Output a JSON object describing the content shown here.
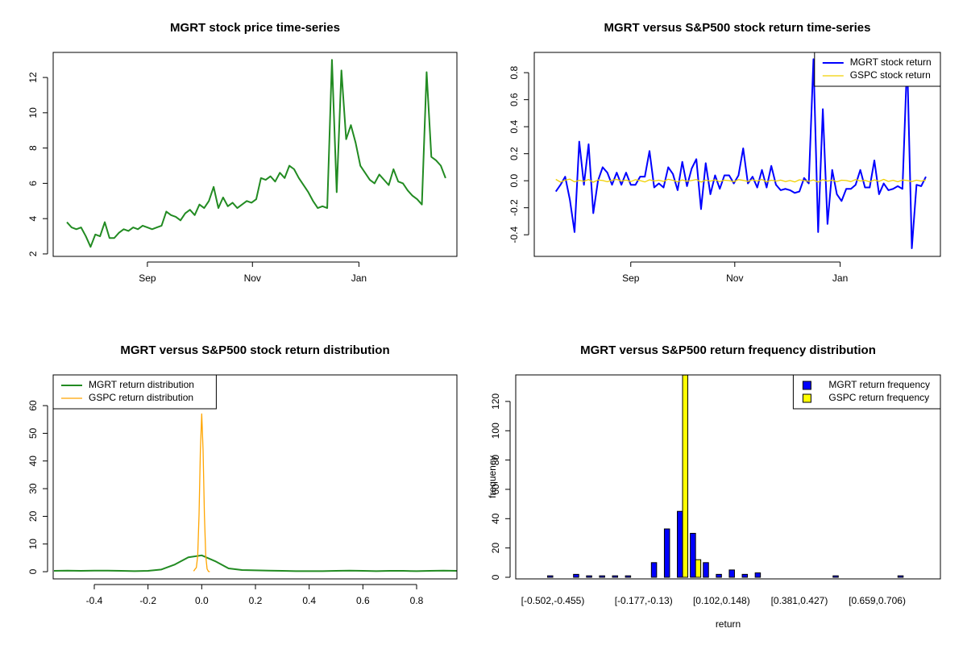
{
  "chart_data": [
    {
      "type": "line",
      "title": "MGRT stock price time-series",
      "series": [
        {
          "color": "#228b22",
          "values": [
            3.8,
            3.5,
            3.4,
            3.5,
            3.0,
            2.4,
            3.1,
            3.0,
            3.8,
            2.9,
            2.9,
            3.2,
            3.4,
            3.3,
            3.5,
            3.4,
            3.6,
            3.5,
            3.4,
            3.5,
            3.6,
            4.4,
            4.2,
            4.1,
            3.9,
            4.3,
            4.5,
            4.2,
            4.8,
            4.6,
            5.0,
            5.8,
            4.6,
            5.2,
            4.7,
            4.9,
            4.6,
            4.8,
            5.0,
            4.9,
            5.1,
            6.3,
            6.2,
            6.4,
            6.1,
            6.6,
            6.3,
            7.0,
            6.8,
            6.3,
            5.9,
            5.5,
            5.0,
            4.6,
            4.7,
            4.6,
            13.0,
            5.5,
            12.4,
            8.5,
            9.3,
            8.3,
            7.0,
            6.6,
            6.2,
            6.0,
            6.5,
            6.2,
            5.9,
            6.8,
            6.1,
            6.0,
            5.6,
            5.3,
            5.1,
            4.8,
            12.3,
            7.5,
            7.3,
            7.0,
            6.3
          ]
        }
      ],
      "xlim": [
        -2.9,
        82.4
      ],
      "xticks": [
        {
          "value": 17,
          "label": "Sep"
        },
        {
          "value": 39.2,
          "label": "Nov"
        },
        {
          "value": 61.7,
          "label": "Jan"
        }
      ],
      "ylim": [
        1.86,
        13.42
      ],
      "yticks": [
        2,
        4,
        6,
        8,
        10,
        12
      ]
    },
    {
      "type": "line",
      "title": "MGRT versus S&P500 stock return time-series",
      "legend": "topright",
      "series": [
        {
          "name": "MGRT stock return",
          "color": "#0000ff",
          "values": [
            null,
            -0.08,
            -0.03,
            0.03,
            -0.14,
            -0.38,
            0.29,
            -0.03,
            0.27,
            -0.24,
            0,
            0.1,
            0.06,
            -0.03,
            0.06,
            -0.03,
            0.06,
            -0.03,
            -0.03,
            0.03,
            0.03,
            0.22,
            -0.05,
            -0.02,
            -0.05,
            0.1,
            0.05,
            -0.07,
            0.14,
            -0.04,
            0.09,
            0.16,
            -0.21,
            0.13,
            -0.1,
            0.04,
            -0.06,
            0.04,
            0.04,
            -0.02,
            0.04,
            0.24,
            -0.02,
            0.03,
            -0.05,
            0.08,
            -0.05,
            0.11,
            -0.03,
            -0.07,
            -0.06,
            -0.07,
            -0.09,
            -0.08,
            0.02,
            -0.02,
            0.9,
            -0.38,
            0.53,
            -0.32,
            0.08,
            -0.1,
            -0.15,
            -0.06,
            -0.06,
            -0.03,
            0.08,
            -0.05,
            -0.05,
            0.15,
            -0.1,
            -0.02,
            -0.07,
            -0.06,
            -0.04,
            -0.06,
            0.9,
            -0.5,
            -0.03,
            -0.04,
            0.03
          ]
        },
        {
          "name": "GSPC stock return",
          "color": "#f0d000",
          "values": [
            null,
            0.01,
            -0.01,
            0.005,
            0.012,
            -0.008,
            0.003,
            -0.004,
            0.009,
            -0.011,
            0.006,
            0.002,
            -0.007,
            0.004,
            0.01,
            -0.003,
            0.005,
            -0.006,
            0.008,
            0.001,
            -0.009,
            0.007,
            -0.002,
            0.004,
            -0.005,
            0.011,
            0.003,
            -0.008,
            0.006,
            -0.004,
            0.002,
            0.009,
            -0.01,
            0.005,
            -0.003,
            0.007,
            -0.006,
            0.004,
            0.001,
            -0.007,
            0.008,
            0.003,
            -0.005,
            0.006,
            -0.002,
            0.009,
            -0.008,
            0.004,
            -0.003,
            0.005,
            -0.006,
            0.002,
            -0.009,
            0.007,
            0.001,
            -0.004,
            0.006,
            -0.01,
            0.008,
            -0.003,
            0.005,
            -0.007,
            0.004,
            0.002,
            -0.006,
            0.009,
            -0.002,
            0.003,
            -0.008,
            0.006,
            -0.004,
            0.01,
            -0.005,
            0.003,
            -0.007,
            0.005,
            0.002,
            -0.006,
            0.004,
            -0.003,
            0.006
          ]
        }
      ],
      "xlim": [
        -3.6,
        83.1
      ],
      "xticks": [
        {
          "value": 17,
          "label": "Sep"
        },
        {
          "value": 39.2,
          "label": "Nov"
        },
        {
          "value": 61.7,
          "label": "Jan"
        }
      ],
      "ylim": [
        -0.56,
        0.95
      ],
      "yticks": [
        -0.4,
        -0.2,
        {
          "value": 0,
          "label": "0.0"
        },
        0.2,
        0.4,
        0.6,
        0.8
      ]
    },
    {
      "type": "line",
      "title": "MGRT versus S&P500 stock return distribution",
      "legend": "topleft",
      "series": [
        {
          "name": "MGRT return distribution",
          "color": "#228b22",
          "x": [
            -0.55,
            -0.5,
            -0.45,
            -0.4,
            -0.35,
            -0.3,
            -0.25,
            -0.2,
            -0.15,
            -0.1,
            -0.05,
            0,
            0.05,
            0.1,
            0.15,
            0.2,
            0.25,
            0.3,
            0.35,
            0.4,
            0.45,
            0.5,
            0.55,
            0.6,
            0.65,
            0.7,
            0.75,
            0.8,
            0.85,
            0.9,
            0.95
          ],
          "values": [
            0.3,
            0.4,
            0.3,
            0.4,
            0.4,
            0.3,
            0.2,
            0.3,
            0.8,
            2.6,
            5.2,
            5.9,
            3.8,
            1.2,
            0.6,
            0.5,
            0.4,
            0.3,
            0.2,
            0.2,
            0.2,
            0.3,
            0.4,
            0.3,
            0.2,
            0.3,
            0.3,
            0.2,
            0.3,
            0.4,
            0.3
          ]
        },
        {
          "name": "GSPC return distribution",
          "color": "#ffa500",
          "x": [
            -0.03,
            -0.025,
            -0.02,
            -0.015,
            -0.01,
            -0.005,
            0,
            0.005,
            0.01,
            0.015,
            0.02,
            0.025,
            0.03
          ],
          "values": [
            0.2,
            0.9,
            1.5,
            5.7,
            20.5,
            44,
            57,
            44,
            20.5,
            5.7,
            1,
            0.1,
            0
          ]
        }
      ],
      "xlim": [
        -0.553,
        0.95
      ],
      "xticks": [
        -0.4,
        -0.2,
        {
          "value": 0,
          "label": "0.0"
        },
        0.2,
        0.4,
        0.6,
        0.8
      ],
      "ylim": [
        -2.6,
        71.1
      ],
      "yticks": [
        0,
        10,
        20,
        30,
        40,
        50,
        60
      ]
    },
    {
      "type": "bar",
      "title": "MGRT versus S&P500 return frequency distribution",
      "legend": "topright",
      "xlabel": "return",
      "ylabel": "frequency",
      "categories": [
        "[-0.502,-0.455)",
        null,
        null,
        null,
        null,
        null,
        null,
        "[-0.177,-0.13)",
        null,
        null,
        null,
        null,
        null,
        "[0.102,0.148)",
        null,
        null,
        null,
        null,
        null,
        "[0.381,0.427)",
        null,
        null,
        null,
        null,
        null,
        "[0.659,0.706)",
        null,
        null,
        null,
        null
      ],
      "series": [
        {
          "name": "MGRT return frequency",
          "color": "#0000ff",
          "values": [
            1,
            0,
            2,
            1,
            1,
            1,
            1,
            0,
            10,
            33,
            45,
            30,
            10,
            2,
            5,
            2,
            3,
            0,
            0,
            0,
            0,
            0,
            1,
            0,
            0,
            0,
            0,
            1,
            0,
            0
          ]
        },
        {
          "name": "GSPC return frequency",
          "color": "#ffff00",
          "values": [
            0,
            0,
            0,
            0,
            0,
            0,
            0,
            0,
            0,
            0,
            138,
            12,
            0,
            0,
            0,
            0,
            0,
            0,
            0,
            0,
            0,
            0,
            0,
            0,
            0,
            0,
            0,
            0,
            0,
            0
          ]
        }
      ],
      "ylim": [
        -1.1,
        138.1
      ],
      "yticks": [
        0,
        20,
        40,
        60,
        80,
        100,
        120
      ]
    }
  ]
}
